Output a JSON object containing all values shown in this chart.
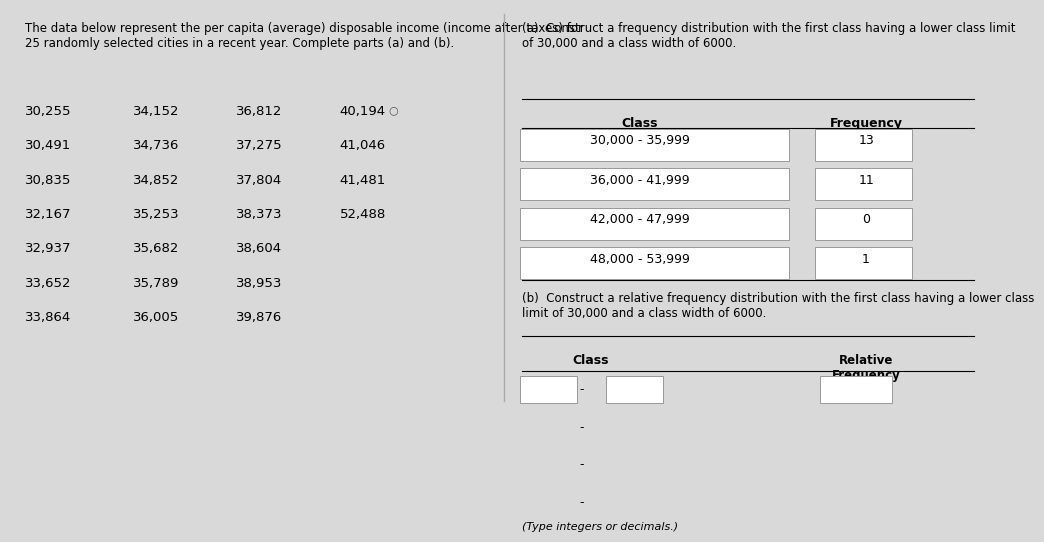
{
  "bg_color": "#d9d9d9",
  "panel_bg": "#e8e8e8",
  "white": "#ffffff",
  "left_title": "The data below represent the per capita (average) disposable income (income after taxes) for\n25 randomly selected cities in a recent year. Complete parts (a) and (b).",
  "data_rows": [
    [
      "30,255",
      "34,152",
      "36,812",
      "40,194"
    ],
    [
      "30,491",
      "34,736",
      "37,275",
      "41,046"
    ],
    [
      "30,835",
      "34,852",
      "37,804",
      "41,481"
    ],
    [
      "32,167",
      "35,253",
      "38,373",
      "52,488"
    ],
    [
      "32,937",
      "35,682",
      "38,604",
      ""
    ],
    [
      "33,652",
      "35,789",
      "38,953",
      ""
    ],
    [
      "33,864",
      "36,005",
      "39,876",
      ""
    ]
  ],
  "part_a_title": "(a)  Construct a frequency distribution with the first class having a lower class limit\nof 30,000 and a class width of 6000.",
  "part_a_col1": "Class",
  "part_a_col2": "Frequency",
  "part_a_classes": [
    "30,000 - 35,999",
    "36,000 - 41,999",
    "42,000 - 47,999",
    "48,000 - 53,999"
  ],
  "part_a_freqs": [
    "13",
    "11",
    "0",
    "1"
  ],
  "part_b_title": "(b)  Construct a relative frequency distribution with the first class having a lower class\nlimit of 30,000 and a class width of 6000.",
  "part_b_col1": "Class",
  "part_b_col2": "Relative\nFrequency",
  "num_b_rows": 4,
  "font_size_title": 8.5,
  "font_size_data": 9.5,
  "font_size_table": 9.0,
  "font_size_small": 8.0
}
